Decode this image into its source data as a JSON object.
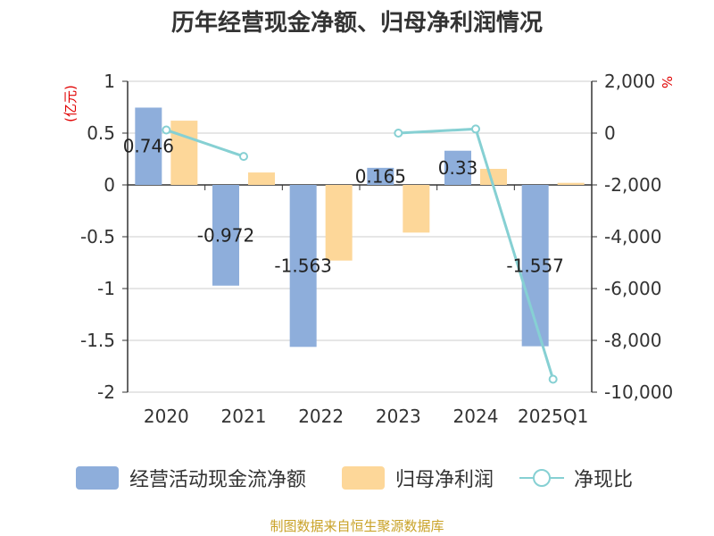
{
  "chart_data": {
    "type": "bar",
    "title": "历年经营现金净额、归母净利润情况",
    "categories": [
      "2020",
      "2021",
      "2022",
      "2023",
      "2024",
      "2025Q1"
    ],
    "left_axis": {
      "unit": "(亿元)",
      "ylim": [
        -2,
        1
      ],
      "ticks": [
        1,
        0.5,
        0,
        -0.5,
        -1,
        -1.5,
        -2
      ],
      "tick_labels": [
        "1",
        "0.5",
        "0",
        "-0.5",
        "-1",
        "-1.5",
        "-2"
      ]
    },
    "right_axis": {
      "unit": "%",
      "ylim": [
        -10000,
        2000
      ],
      "ticks": [
        2000,
        0,
        -2000,
        -4000,
        -6000,
        -8000,
        -10000
      ],
      "tick_labels": [
        "2,000",
        "0",
        "-2,000",
        "-4,000",
        "-6,000",
        "-8,000",
        "-10,000"
      ]
    },
    "series": [
      {
        "name": "经营活动现金流净额",
        "type": "bar",
        "axis": "left",
        "color": "#8eaedb",
        "values": [
          0.746,
          -0.972,
          -1.563,
          0.165,
          0.33,
          -1.557
        ],
        "labels": [
          "0.746",
          "-0.972",
          "-1.563",
          "0.165",
          "0.33",
          "-1.557"
        ]
      },
      {
        "name": "归母净利润",
        "type": "bar",
        "axis": "left",
        "color": "#fdd799",
        "values": [
          0.62,
          0.12,
          -0.73,
          -0.46,
          0.155,
          0.02
        ]
      },
      {
        "name": "净现比",
        "type": "line",
        "axis": "right",
        "color": "#86d0d3",
        "values": [
          120,
          -900,
          null,
          0,
          160,
          -9500
        ]
      }
    ],
    "grid": true,
    "legend_position": "bottom"
  },
  "source_text": "制图数据来自恒生聚源数据库"
}
